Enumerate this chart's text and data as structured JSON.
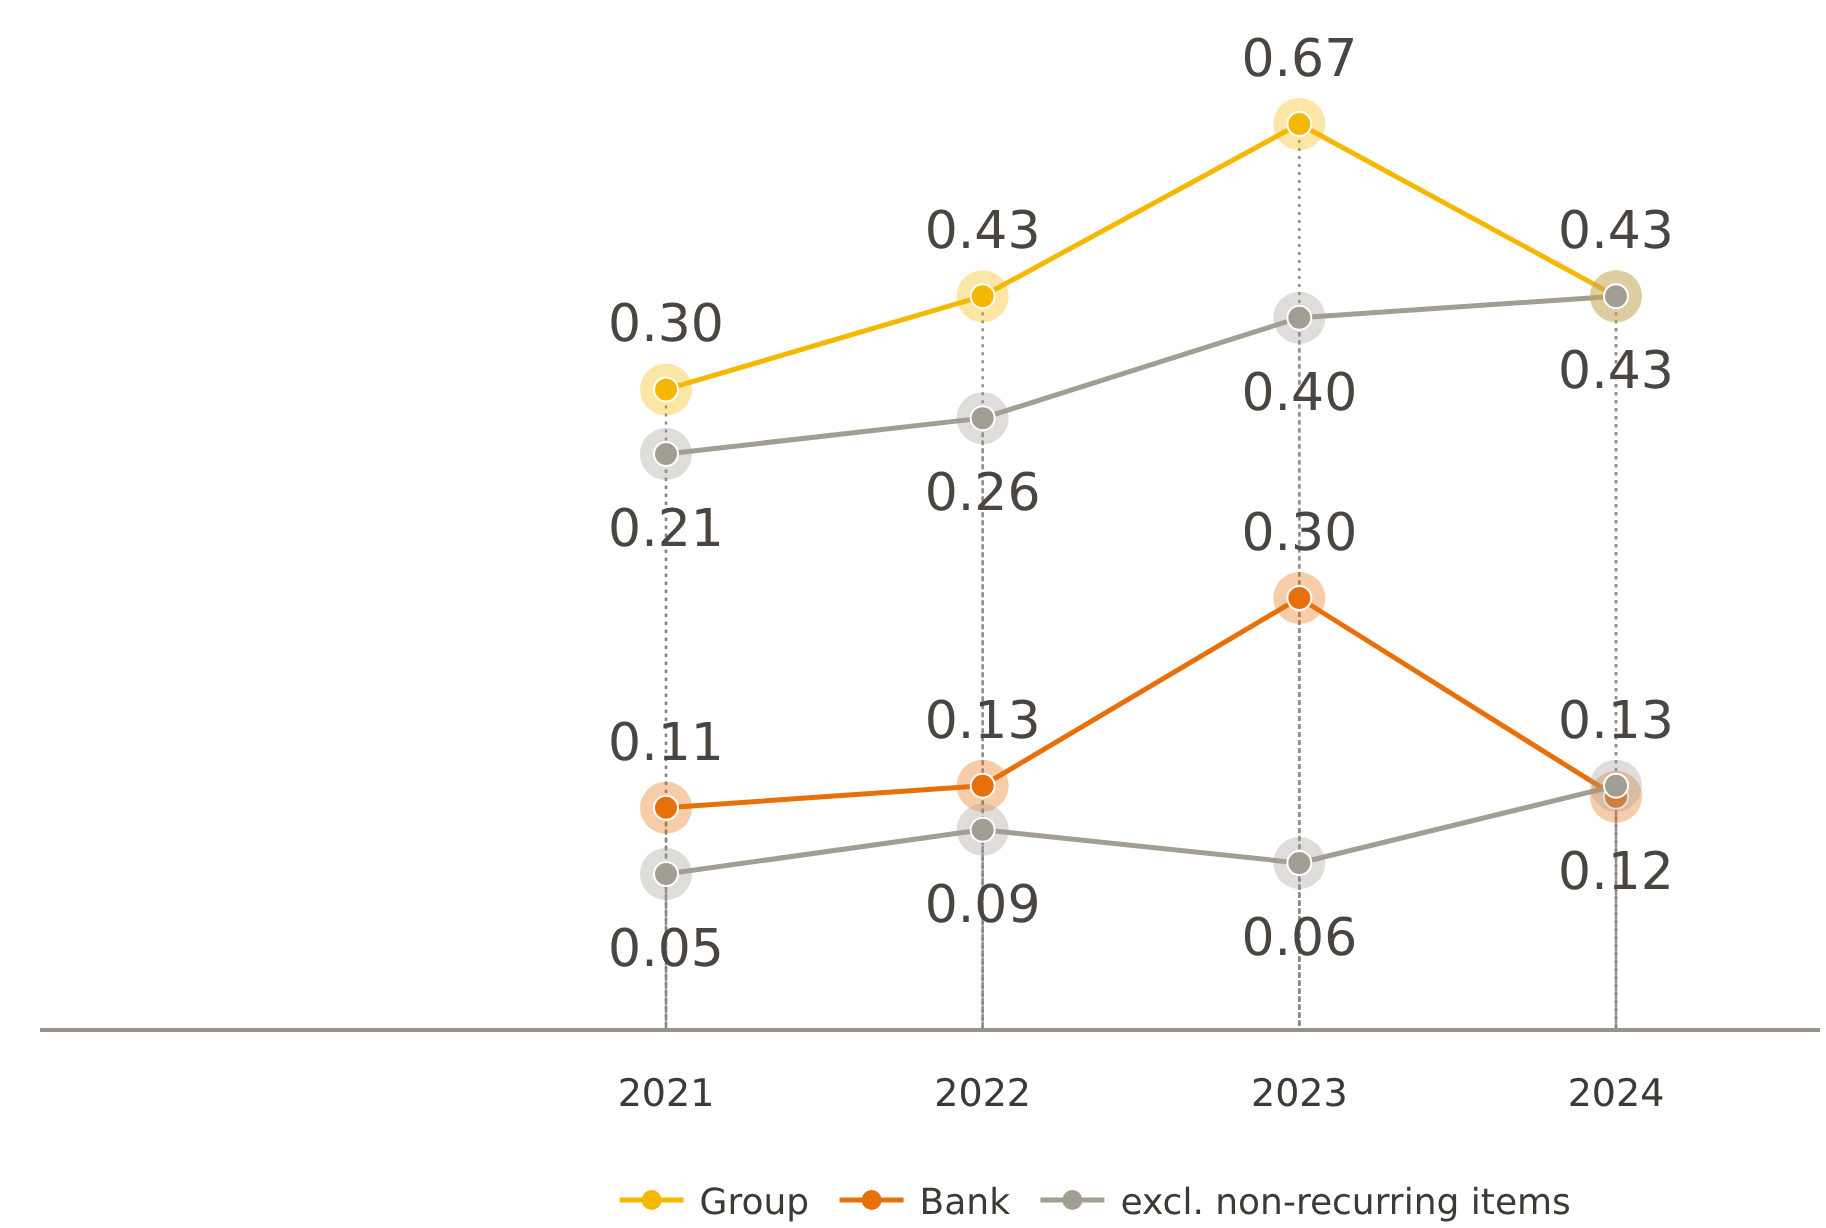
{
  "chart_data": [
    {
      "type": "line",
      "categories": [
        null,
        null,
        null,
        null
      ],
      "series": [
        {
          "name": "Group",
          "color": "#f5b800",
          "values": [
            0.3,
            0.43,
            0.67,
            0.43
          ],
          "value_labels": [
            "0.30",
            "0.43",
            "0.67",
            "0.43"
          ]
        },
        {
          "name": "excl. non-recurring items",
          "color": "#a39e94",
          "values": [
            0.21,
            0.26,
            0.4,
            0.43
          ],
          "value_labels": [
            "0.21",
            "0.26",
            "0.40",
            "0.43"
          ]
        }
      ],
      "marker": "circle",
      "grid": "x",
      "legend": "bottom"
    },
    {
      "type": "line",
      "categories": [
        "2021",
        "2022",
        "2023",
        "2024"
      ],
      "series": [
        {
          "name": "Bank",
          "color": "#e8700a",
          "values": [
            0.11,
            0.13,
            0.3,
            0.12
          ],
          "value_labels": [
            "0.11",
            "0.13",
            "0.30",
            "0.12"
          ]
        },
        {
          "color": "#a39e94",
          "values": [
            0.05,
            0.09,
            0.06,
            0.13
          ],
          "value_labels": [
            "0.05",
            "0.09",
            "0.06",
            "0.13"
          ]
        }
      ],
      "marker": "circle",
      "grid": "x",
      "legend": "bottom"
    }
  ]
}
